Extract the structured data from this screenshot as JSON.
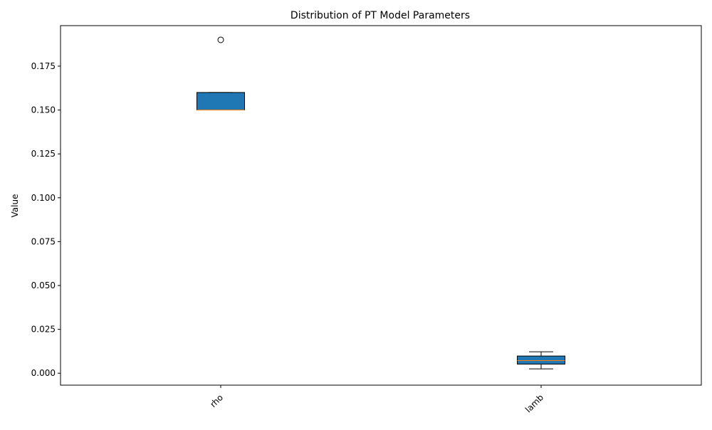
{
  "chart_data": {
    "type": "box",
    "title": "Distribution of PT Model Parameters",
    "xlabel": "",
    "ylabel": "Value",
    "ylim": [
      -0.0068,
      0.1981
    ],
    "yticks": [
      0.0,
      0.025,
      0.05,
      0.075,
      0.1,
      0.125,
      0.15,
      0.175
    ],
    "ytick_labels": [
      "0.000",
      "0.025",
      "0.050",
      "0.075",
      "0.100",
      "0.125",
      "0.150",
      "0.175"
    ],
    "categories": [
      "rho",
      "lamb"
    ],
    "boxes": [
      {
        "name": "rho",
        "whisker_low": 0.15,
        "q1": 0.15,
        "median": 0.15,
        "q3": 0.16,
        "whisker_high": 0.16,
        "outliers": [
          0.19
        ]
      },
      {
        "name": "lamb",
        "whisker_low": 0.0025,
        "q1": 0.0052,
        "median": 0.0072,
        "q3": 0.0098,
        "whisker_high": 0.0122,
        "outliers": []
      }
    ],
    "grid": false,
    "colors": {
      "box_fill": "#1f77b4",
      "median": "#ff7f0e",
      "edge": "#000000"
    }
  }
}
